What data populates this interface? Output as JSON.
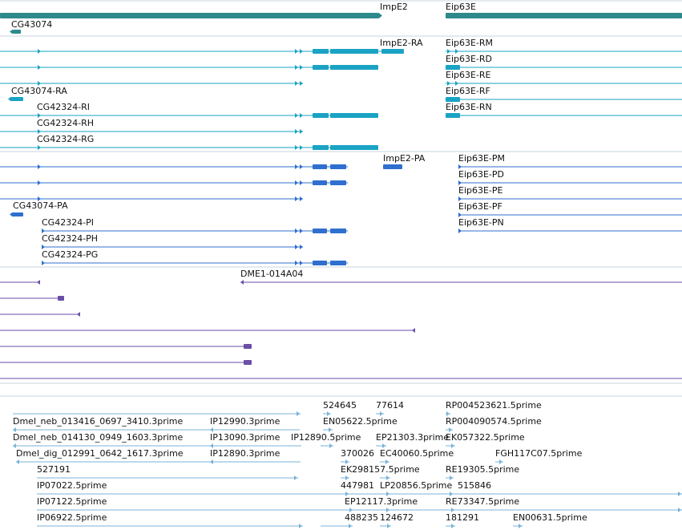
{
  "colors": {
    "gene": "#2e8a8a",
    "transcript_flybase": "#1aa3c4",
    "transcript_ncbi": "#2f6fd0",
    "clone": "#6a4ea8",
    "est": "#7ab3d8",
    "divider": "#c8d4dc"
  },
  "genes": [
    {
      "label": "ImpE2"
    },
    {
      "label": "Eip63E"
    },
    {
      "label": "CG43074"
    }
  ],
  "flybase_transcripts": [
    {
      "label": "ImpE2-RA"
    },
    {
      "label": "Eip63E-RM"
    },
    {
      "label": "Eip63E-RD"
    },
    {
      "label": "Eip63E-RE"
    },
    {
      "label": "Eip63E-RF"
    },
    {
      "label": "Eip63E-RN"
    },
    {
      "label": "CG43074-RA"
    },
    {
      "label": "CG42324-RI"
    },
    {
      "label": "CG42324-RH"
    },
    {
      "label": "CG42324-RG"
    }
  ],
  "ncbi_transcripts": [
    {
      "label": "ImpE2-PA"
    },
    {
      "label": "Eip63E-PM"
    },
    {
      "label": "Eip63E-PD"
    },
    {
      "label": "Eip63E-PE"
    },
    {
      "label": "Eip63E-PF"
    },
    {
      "label": "Eip63E-PN"
    },
    {
      "label": "CG43074-PA"
    },
    {
      "label": "CG42324-PI"
    },
    {
      "label": "CG42324-PH"
    },
    {
      "label": "CG42324-PG"
    }
  ],
  "clones": [
    {
      "label": "DME1-014A04"
    }
  ],
  "ests": [
    {
      "label": "524645"
    },
    {
      "label": "77614"
    },
    {
      "label": "RP004523621.5prime"
    },
    {
      "label": "Dmel_neb_013416_0697_3410.3prime"
    },
    {
      "label": "IP12990.3prime"
    },
    {
      "label": "EN05622.5prime"
    },
    {
      "label": "RP004090574.5prime"
    },
    {
      "label": "Dmel_neb_014130_0949_1603.3prime"
    },
    {
      "label": "IP13090.3prime"
    },
    {
      "label": "IP12890.5prime"
    },
    {
      "label": "EP21303.3prime"
    },
    {
      "label": "EK057322.5prime"
    },
    {
      "label": "Dmel_dig_012991_0642_1617.3prime"
    },
    {
      "label": "IP12890.3prime"
    },
    {
      "label": "370026"
    },
    {
      "label": "EC40060.5prime"
    },
    {
      "label": "FGH117C07.5prime"
    },
    {
      "label": "527191"
    },
    {
      "label": "EK298157.5prime"
    },
    {
      "label": "RE19305.5prime"
    },
    {
      "label": "IP07022.5prime"
    },
    {
      "label": "447981"
    },
    {
      "label": "LP20856.5prime"
    },
    {
      "label": "515846"
    },
    {
      "label": "IP07122.5prime"
    },
    {
      "label": "EP12117.3prime"
    },
    {
      "label": "RE73347.5prime"
    },
    {
      "label": "IP06922.5prime"
    },
    {
      "label": "488235"
    },
    {
      "label": "124672"
    },
    {
      "label": "181291"
    },
    {
      "label": "EN00631.5prime"
    }
  ]
}
